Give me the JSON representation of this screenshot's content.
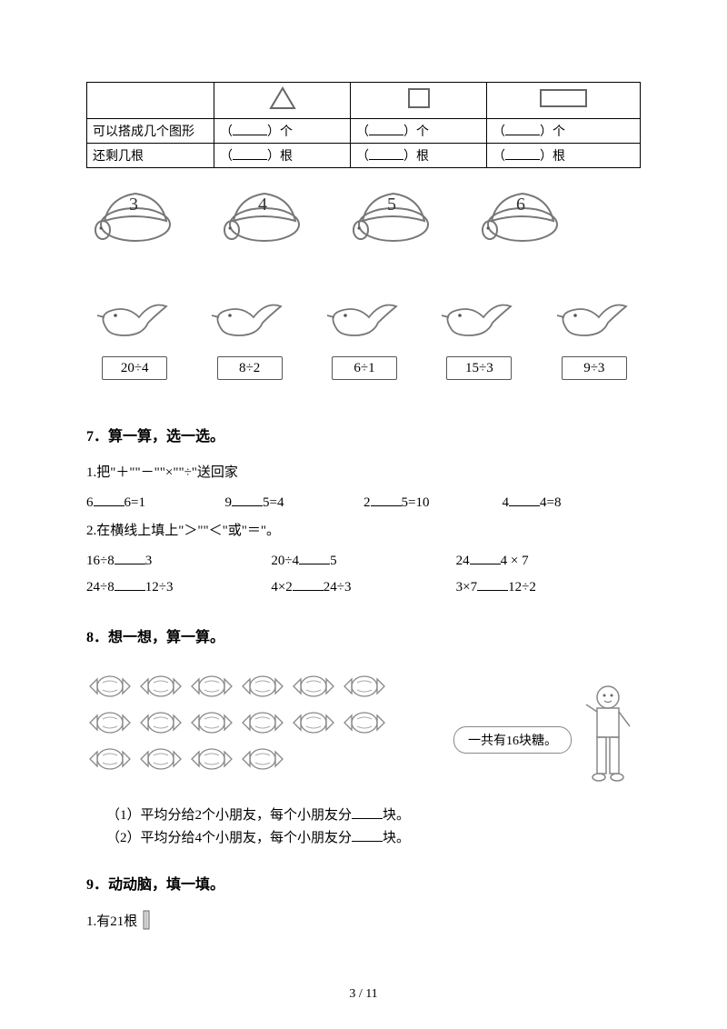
{
  "table": {
    "row1_label": "可以搭成几个图形",
    "row2_label": "还剩几根",
    "unit_ge": "个",
    "unit_gen": "根"
  },
  "turtles": {
    "nums": [
      "3",
      "4",
      "5",
      "6"
    ]
  },
  "birds": {
    "exprs": [
      "20÷4",
      "8÷2",
      "6÷1",
      "15÷3",
      "9÷3"
    ]
  },
  "q7": {
    "title": "7．算一算，选一选。",
    "sub1": "1.把\"＋\"\"－\"\"×\"\"÷\"送回家",
    "eq": [
      {
        "a": "6",
        "b": "6=1"
      },
      {
        "a": "9",
        "b": "5=4"
      },
      {
        "a": "2",
        "b": "5=10"
      },
      {
        "a": "4",
        "b": "4=8"
      }
    ],
    "sub2": "2.在横线上填上\"＞\"\"＜\"或\"＝\"。",
    "cmp1": [
      {
        "l": "16÷8",
        "r": "3"
      },
      {
        "l": "20÷4",
        "r": "5"
      },
      {
        "l": "24",
        "r": "4 × 7"
      }
    ],
    "cmp2": [
      {
        "l": "24÷8",
        "r": "12÷3"
      },
      {
        "l": "4×2",
        "r": "24÷3"
      },
      {
        "l": "3×7",
        "r": "12÷2"
      }
    ]
  },
  "q8": {
    "title": "8．想一想，算一算。",
    "speech": "一共有16块糖。",
    "s1_pre": "（1）平均分给2个小朋友，每个小朋友分",
    "s1_suf": "块。",
    "s2_pre": "（2）平均分给4个小朋友，每个小朋友分",
    "s2_suf": "块。"
  },
  "q9": {
    "title": "9．动动脑，填一填。",
    "s1": "1.有21根"
  },
  "footer": "3 / 11",
  "colors": {
    "stroke": "#666666",
    "light": "#aaaaaa"
  }
}
